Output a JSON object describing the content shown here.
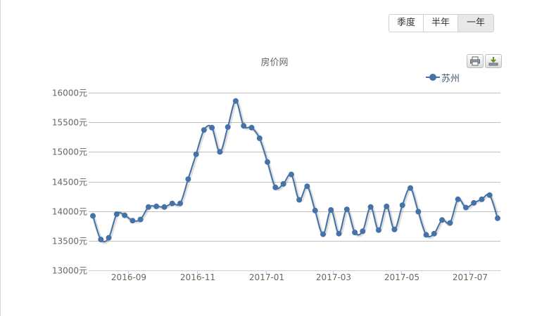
{
  "range_buttons": [
    {
      "label": "季度",
      "active": false
    },
    {
      "label": "半年",
      "active": false
    },
    {
      "label": "一年",
      "active": true
    }
  ],
  "icons": {
    "print": "print-icon",
    "export": "download-icon"
  },
  "colors": {
    "series": "#4572a7",
    "grid": "#c0c0c0",
    "axis": "#c0d0e0"
  },
  "chart_data": {
    "type": "line",
    "title": "房价网",
    "xlabel": "",
    "ylabel": "",
    "ylim": [
      13000,
      16000
    ],
    "y_ticks": [
      13000,
      13500,
      14000,
      14500,
      15000,
      15500,
      16000
    ],
    "y_tick_suffix": "元",
    "x_tick_labels": [
      "2016-09",
      "2016-11",
      "2017-01",
      "2017-03",
      "2017-05",
      "2017-07"
    ],
    "legend_position": "top-right",
    "grid": true,
    "series": [
      {
        "name": "苏州",
        "values": [
          13920,
          13520,
          13550,
          13950,
          13930,
          13840,
          13860,
          14070,
          14080,
          14070,
          14130,
          14130,
          14540,
          14960,
          15370,
          15410,
          15000,
          15420,
          15860,
          15440,
          15410,
          15230,
          14830,
          14400,
          14460,
          14620,
          14190,
          14420,
          14010,
          13610,
          14020,
          13620,
          14030,
          13640,
          13660,
          14070,
          13680,
          14080,
          13690,
          14100,
          14390,
          13990,
          13600,
          13620,
          13850,
          13800,
          14200,
          14060,
          14140,
          14200,
          14270,
          13880
        ]
      }
    ]
  }
}
